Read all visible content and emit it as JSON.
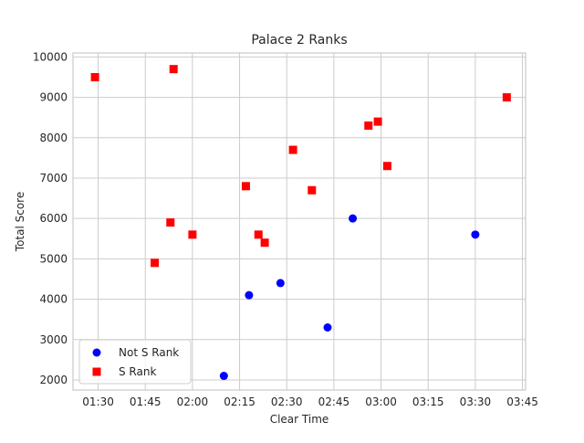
{
  "chart_data": {
    "type": "scatter",
    "title": "Palace 2 Ranks",
    "xlabel": "Clear Time",
    "ylabel": "Total Score",
    "x_unit": "mm:ss",
    "xlim": [
      "01:22",
      "03:46"
    ],
    "ylim": [
      1750,
      10100
    ],
    "x_ticks": [
      "01:30",
      "01:45",
      "02:00",
      "02:15",
      "02:30",
      "02:45",
      "03:00",
      "03:15",
      "03:30",
      "03:45"
    ],
    "y_ticks": [
      2000,
      3000,
      4000,
      5000,
      6000,
      7000,
      8000,
      9000,
      10000
    ],
    "grid": true,
    "legend_position": "lower-left",
    "series": [
      {
        "name": "Not S Rank",
        "marker": "circle",
        "color": "#0000ff",
        "points": [
          {
            "x": "02:10",
            "y": 2100
          },
          {
            "x": "02:18",
            "y": 4100
          },
          {
            "x": "02:28",
            "y": 4400
          },
          {
            "x": "02:43",
            "y": 3300
          },
          {
            "x": "02:51",
            "y": 6000
          },
          {
            "x": "03:30",
            "y": 5600
          }
        ]
      },
      {
        "name": "S Rank",
        "marker": "square",
        "color": "#ff0000",
        "points": [
          {
            "x": "01:29",
            "y": 9500
          },
          {
            "x": "01:48",
            "y": 4900
          },
          {
            "x": "01:53",
            "y": 5900
          },
          {
            "x": "01:54",
            "y": 9700
          },
          {
            "x": "02:00",
            "y": 5600
          },
          {
            "x": "02:17",
            "y": 6800
          },
          {
            "x": "02:21",
            "y": 5600
          },
          {
            "x": "02:23",
            "y": 5400
          },
          {
            "x": "02:32",
            "y": 7700
          },
          {
            "x": "02:38",
            "y": 6700
          },
          {
            "x": "02:56",
            "y": 8300
          },
          {
            "x": "02:59",
            "y": 8400
          },
          {
            "x": "03:02",
            "y": 7300
          },
          {
            "x": "03:40",
            "y": 9000
          }
        ]
      }
    ]
  }
}
